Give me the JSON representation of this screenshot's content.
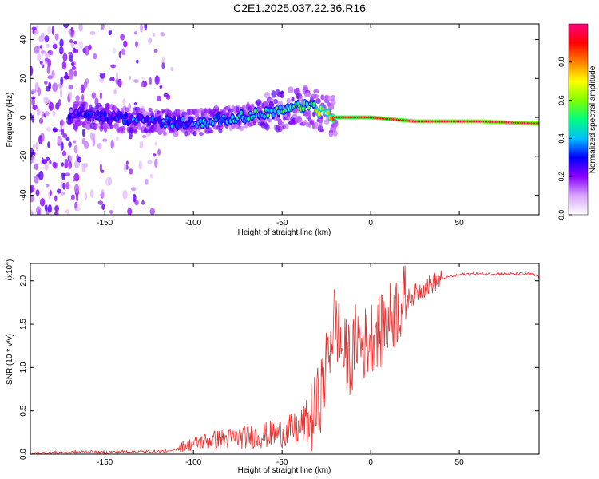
{
  "title": "C2E1.2025.037.22.36.R16",
  "chart_data": [
    {
      "type": "heatmap",
      "xlabel": "Height of straight line (km)",
      "ylabel": "Frequency (Hz)",
      "xlim": [
        -192,
        95
      ],
      "ylim": [
        -50,
        48
      ],
      "x_ticks": [
        -150,
        -100,
        -50,
        0,
        50
      ],
      "y_ticks": [
        -40,
        -20,
        0,
        20,
        40
      ],
      "colorbar": {
        "label": "Normalized spectral amplitude",
        "range": [
          0,
          1
        ],
        "ticks": [
          "0.0",
          "0.2",
          "0.4",
          "0.6",
          "0.8"
        ],
        "colors": [
          "#ffffff",
          "#d9a6ff",
          "#8a00ff",
          "#0000ff",
          "#00bfff",
          "#00ff80",
          "#80ff00",
          "#ffff00",
          "#ff8000",
          "#ff0000",
          "#ff0080"
        ]
      },
      "ridge": [
        {
          "x": -165,
          "freq": 2,
          "amp": 0.22
        },
        {
          "x": -150,
          "freq": 0,
          "amp": 0.28
        },
        {
          "x": -125,
          "freq": -2,
          "amp": 0.32
        },
        {
          "x": -100,
          "freq": -3,
          "amp": 0.36
        },
        {
          "x": -75,
          "freq": 0,
          "amp": 0.42
        },
        {
          "x": -55,
          "freq": 3,
          "amp": 0.48
        },
        {
          "x": -40,
          "freq": 6,
          "amp": 0.52
        },
        {
          "x": -32,
          "freq": 5,
          "amp": 0.6
        },
        {
          "x": -20,
          "freq": 0,
          "amp": 0.88
        },
        {
          "x": 0,
          "freq": 0,
          "amp": 0.9
        },
        {
          "x": 25,
          "freq": -2,
          "amp": 0.95
        },
        {
          "x": 60,
          "freq": -2,
          "amp": 0.97
        },
        {
          "x": 90,
          "freq": -3,
          "amp": 0.99
        }
      ]
    },
    {
      "type": "line",
      "xlabel": "Height of straight line (km)",
      "ylabel": "SNR (10 * v/v)",
      "y_multiplier": "(x10",
      "y_multiplier_exp": "4",
      "y_multiplier_close": ")",
      "xlim": [
        -192,
        95
      ],
      "ylim": [
        0,
        2.2
      ],
      "x_ticks": [
        -150,
        -100,
        -50,
        0,
        50
      ],
      "y_ticks": [
        "0.0",
        "0.5",
        "1.0",
        "1.5",
        "2.0"
      ],
      "line_color": "#e8312f",
      "series": [
        {
          "x": [
            -192,
            -180,
            -170,
            -160,
            -150,
            -140,
            -130,
            -120,
            -112,
            -108,
            -100,
            -90,
            -80,
            -70,
            -60,
            -50,
            -40,
            -32,
            -28,
            -25,
            -22,
            -20,
            -18,
            -15,
            -10,
            -8,
            -5,
            -2,
            0,
            3,
            6,
            9,
            12,
            18,
            25,
            30,
            35,
            40,
            45,
            50,
            55,
            60,
            65,
            70,
            75,
            80,
            85,
            90,
            95
          ],
          "y": [
            0.01,
            0.02,
            0.02,
            0.03,
            0.02,
            0.03,
            0.03,
            0.03,
            0.04,
            0.08,
            0.12,
            0.16,
            0.18,
            0.2,
            0.22,
            0.25,
            0.3,
            0.45,
            0.7,
            1.0,
            1.4,
            1.6,
            1.35,
            1.15,
            1.1,
            1.4,
            1.25,
            1.3,
            1.35,
            1.45,
            1.4,
            1.5,
            1.6,
            1.75,
            1.85,
            1.92,
            1.97,
            2.02,
            2.05,
            2.07,
            2.08,
            2.08,
            2.08,
            2.08,
            2.08,
            2.08,
            2.08,
            2.08,
            2.05
          ]
        }
      ]
    }
  ]
}
